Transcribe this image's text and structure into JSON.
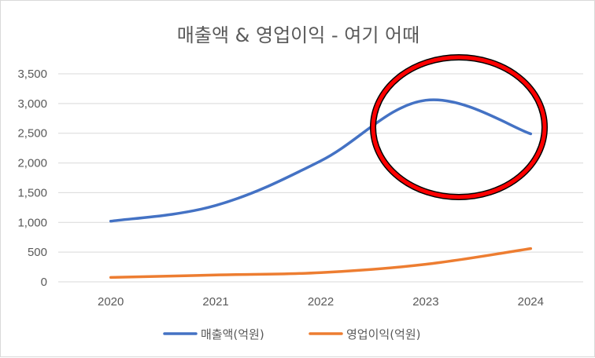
{
  "chart_data": {
    "type": "line",
    "title": "매출액 & 영업이익 - 여기 어때",
    "categories": [
      "2020",
      "2021",
      "2022",
      "2023",
      "2024"
    ],
    "ylim": [
      0,
      3500
    ],
    "yticks": [
      0,
      500,
      1000,
      1500,
      2000,
      2500,
      3000,
      3500
    ],
    "ytick_labels": [
      "0",
      "500",
      "1,000",
      "1,500",
      "2,000",
      "2,500",
      "3,000",
      "3,500"
    ],
    "grid": true,
    "legend_position": "bottom",
    "series": [
      {
        "name": "매출액(억원)",
        "values": [
          1020,
          1285,
          2035,
          3055,
          2490
        ],
        "color": "#4472C4"
      },
      {
        "name": "영업이익(억원)",
        "values": [
          75,
          115,
          155,
          295,
          560
        ],
        "color": "#ED7D31"
      }
    ],
    "annotation": {
      "shape": "ellipse",
      "stroke_color": "#FF0000",
      "outline_color": "#000000",
      "highlights": [
        "2023",
        "2024"
      ]
    }
  }
}
